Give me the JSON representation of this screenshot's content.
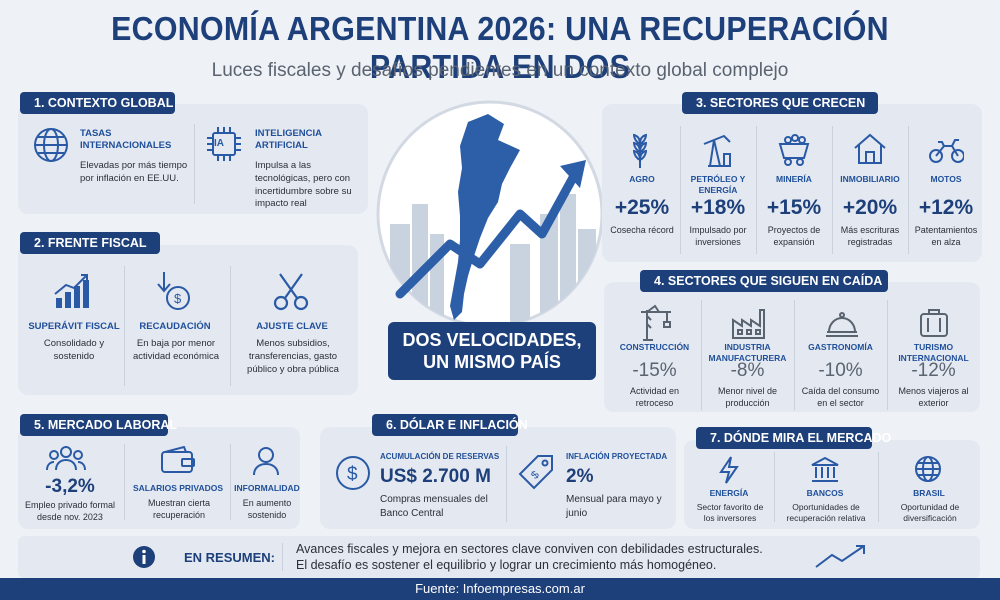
{
  "header": {
    "title": "ECONOMÍA ARGENTINA 2026: UNA RECUPERACIÓN PARTIDA EN DOS",
    "subtitle": "Luces fiscales y desafíos pendientes en un contexto global complejo"
  },
  "contexto": {
    "title": "1. CONTEXTO GLOBAL",
    "items": [
      {
        "icon": "globe-icon",
        "label": "TASAS INTERNACIONALES",
        "text": "Elevadas por más tiempo por inflación en EE.UU."
      },
      {
        "icon": "ai-chip-icon",
        "label": "INTELIGENCIA ARTIFICIAL",
        "text": "Impulsa a las tecnológicas, pero con incertidumbre sobre su impacto real",
        "chip": "IA"
      }
    ]
  },
  "fiscal": {
    "title": "2. FRENTE FISCAL",
    "items": [
      {
        "icon": "bar-chart-icon",
        "label": "SUPERÁVIT FISCAL",
        "text": "Consolidado y sostenido"
      },
      {
        "icon": "coin-down-icon",
        "label": "RECAUDACIÓN",
        "text": "En baja por menor actividad económica"
      },
      {
        "icon": "scissors-icon",
        "label": "AJUSTE CLAVE",
        "text": "Menos subsidios, transferencias, gasto público y obra pública"
      }
    ]
  },
  "center": {
    "banner": "DOS VELOCIDADES, UN MISMO PAÍS"
  },
  "crecen": {
    "title": "3. SECTORES QUE CRECEN",
    "items": [
      {
        "icon": "wheat-icon",
        "label": "AGRO",
        "value": "+25%",
        "text": "Cosecha récord"
      },
      {
        "icon": "oil-pump-icon",
        "label": "PETRÓLEO Y ENERGÍA",
        "value": "+18%",
        "text": "Impulsado por inversiones"
      },
      {
        "icon": "mining-cart-icon",
        "label": "MINERÍA",
        "value": "+15%",
        "text": "Proyectos de expansión"
      },
      {
        "icon": "house-icon",
        "label": "INMOBILIARIO",
        "value": "+20%",
        "text": "Más escrituras registradas"
      },
      {
        "icon": "motorcycle-icon",
        "label": "MOTOS",
        "value": "+12%",
        "text": "Patentamientos en alza"
      }
    ]
  },
  "caida": {
    "title": "4. SECTORES QUE SIGUEN EN CAÍDA",
    "items": [
      {
        "icon": "crane-icon",
        "label": "CONSTRUCCIÓN",
        "value": "-15%",
        "text": "Actividad en retroceso"
      },
      {
        "icon": "factory-icon",
        "label": "INDUSTRIA MANUFACTURERA",
        "value": "-8%",
        "text": "Menor nivel de producción"
      },
      {
        "icon": "cloche-icon",
        "label": "GASTRONOMÍA",
        "value": "-10%",
        "text": "Caída del consumo en el sector"
      },
      {
        "icon": "suitcase-icon",
        "label": "TURISMO INTERNACIONAL",
        "value": "-12%",
        "text": "Menos viajeros al exterior"
      }
    ]
  },
  "laboral": {
    "title": "5. MERCADO LABORAL",
    "items": [
      {
        "icon": "people-icon",
        "value": "-3,2%",
        "text": "Empleo privado formal desde nov. 2023"
      },
      {
        "icon": "wallet-icon",
        "label": "SALARIOS PRIVADOS",
        "text": "Muestran cierta recuperación"
      },
      {
        "icon": "person-icon",
        "label": "INFORMALIDAD",
        "text": "En aumento sostenido"
      }
    ]
  },
  "dolar": {
    "title": "6. DÓLAR E INFLACIÓN",
    "items": [
      {
        "icon": "dollar-coin-icon",
        "label": "ACUMULACIÓN DE RESERVAS",
        "value": "US$ 2.700 M",
        "text": "Compras mensuales del Banco Central"
      },
      {
        "icon": "price-tag-icon",
        "label": "INFLACIÓN PROYECTADA",
        "value": "2%",
        "text": "Mensual para mayo y junio"
      }
    ]
  },
  "mercado": {
    "title": "7. DÓNDE MIRA EL MERCADO",
    "items": [
      {
        "icon": "lightning-icon",
        "label": "ENERGÍA",
        "text": "Sector favorito de los inversores"
      },
      {
        "icon": "bank-icon",
        "label": "BANCOS",
        "text": "Oportunidades de recuperación relativa"
      },
      {
        "icon": "globe-icon",
        "label": "BRASIL",
        "text": "Oportunidad de diversificación"
      }
    ]
  },
  "resumen": {
    "label": "EN RESUMEN:",
    "text1": "Avances fiscales y mejora en sectores clave conviven con debilidades estructurales.",
    "text2": "El desafío es sostener el equilibrio y lograr un crecimiento más homogéneo."
  },
  "footer": {
    "source": "Fuente: Infoempresas.com.ar"
  }
}
